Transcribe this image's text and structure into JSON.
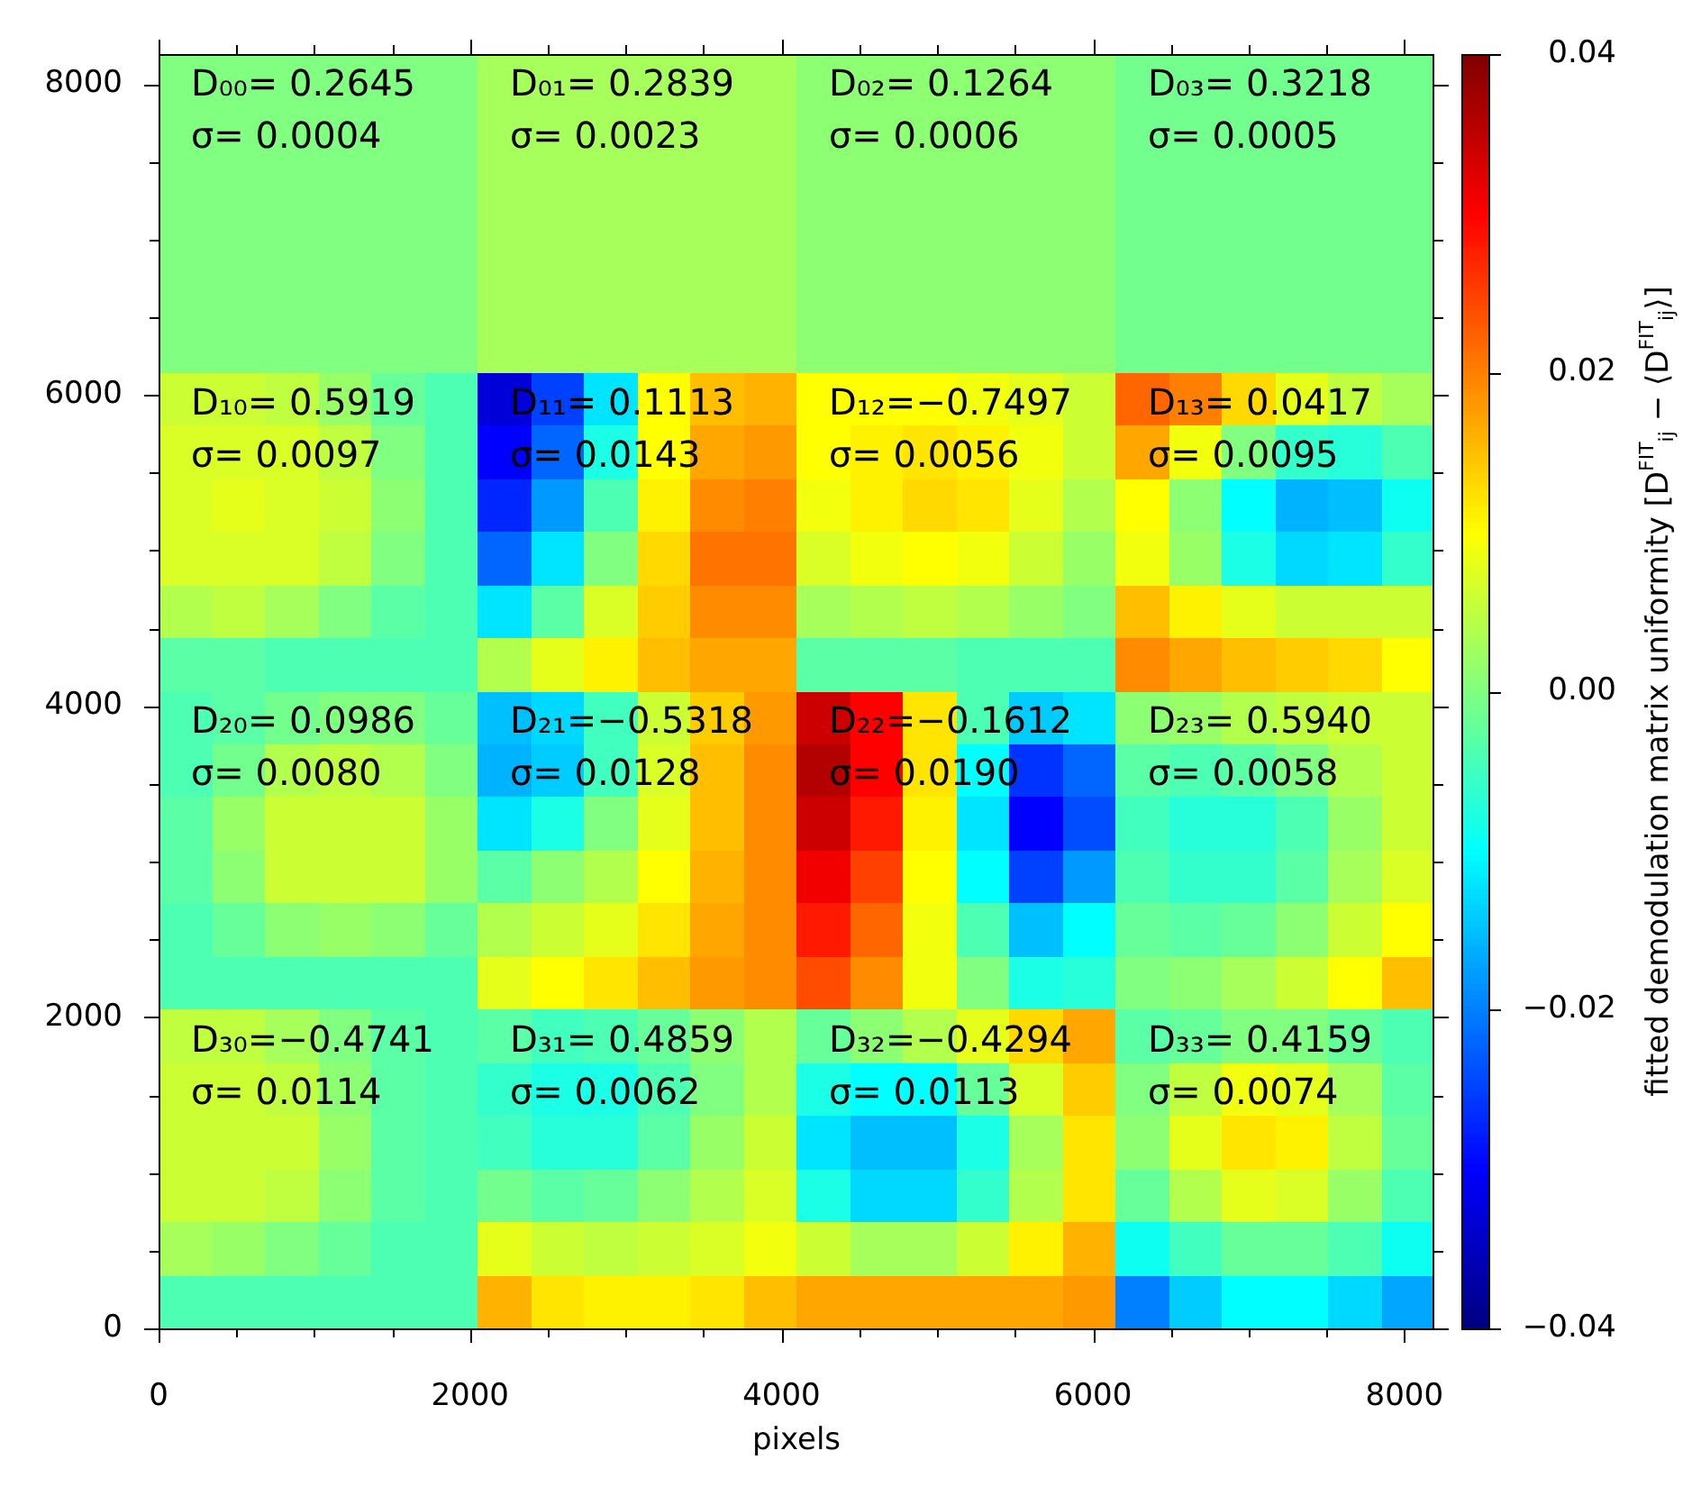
{
  "chart_data": {
    "type": "heatmap",
    "xlabel": "pixels",
    "clabel": "fitted demodulation matrix uniformity [D$^{FIT}$$_{ij}$ − ⟨D$^{FIT}$$_{ij}$⟩]",
    "xlim": [
      0,
      8192
    ],
    "ylim": [
      0,
      8192
    ],
    "xticks": [
      0,
      {
        "value": 500,
        "label": null
      },
      {
        "value": 1000,
        "label": null
      },
      {
        "value": 1500,
        "label": null
      },
      2000,
      {
        "value": 2500,
        "label": null
      },
      {
        "value": 3000,
        "label": null
      },
      {
        "value": 3500,
        "label": null
      },
      4000,
      {
        "value": 4500,
        "label": null
      },
      {
        "value": 5000,
        "label": null
      },
      {
        "value": 5500,
        "label": null
      },
      6000,
      {
        "value": 6500,
        "label": null
      },
      {
        "value": 7000,
        "label": null
      },
      {
        "value": 7500,
        "label": null
      },
      8000
    ],
    "yticks": [
      0,
      {
        "value": 500,
        "label": null
      },
      {
        "value": 1000,
        "label": null
      },
      {
        "value": 1500,
        "label": null
      },
      2000,
      {
        "value": 2500,
        "label": null
      },
      {
        "value": 3000,
        "label": null
      },
      {
        "value": 3500,
        "label": null
      },
      4000,
      {
        "value": 4500,
        "label": null
      },
      {
        "value": 5000,
        "label": null
      },
      {
        "value": 5500,
        "label": null
      },
      6000,
      {
        "value": 6500,
        "label": null
      },
      {
        "value": 7000,
        "label": null
      },
      {
        "value": 7500,
        "label": null
      },
      8000
    ],
    "clim": [
      -0.04,
      0.04
    ],
    "cticks": [
      {
        "value": -0.04,
        "label": "−0.04"
      },
      {
        "value": -0.02,
        "label": "−0.02"
      },
      {
        "value": 0,
        "label": "0.00"
      },
      0.02,
      0.04
    ],
    "cells": [
      [
        0,
        0,
        0,
        0,
        0,
        0,
        0.003,
        0.003,
        0.003,
        0.003,
        0.003,
        0.003,
        0.001,
        0.001,
        0.001,
        0.001,
        0.001,
        0.001,
        -0.001,
        -0.001,
        -0.001,
        -0.001,
        -0.001,
        -0.001
      ],
      [
        0,
        0,
        0,
        0,
        0,
        0,
        0.003,
        0.003,
        0.003,
        0.003,
        0.003,
        0.003,
        0.001,
        0.001,
        0.001,
        0.001,
        0.001,
        0.001,
        -0.001,
        -0.001,
        -0.001,
        -0.001,
        -0.001,
        -0.001
      ],
      [
        0,
        0,
        0,
        0,
        0,
        0,
        0.003,
        0.003,
        0.003,
        0.003,
        0.003,
        0.003,
        0.001,
        0.001,
        0.001,
        0.001,
        0.001,
        0.001,
        -0.001,
        -0.001,
        -0.001,
        -0.001,
        -0.001,
        -0.001
      ],
      [
        0,
        0,
        0,
        0,
        0,
        0,
        0.003,
        0.003,
        0.003,
        0.003,
        0.003,
        0.003,
        0.001,
        0.001,
        0.001,
        0.001,
        0.001,
        0.001,
        -0.001,
        -0.001,
        -0.001,
        -0.001,
        -0.001,
        -0.001
      ],
      [
        0,
        0,
        0,
        0,
        0,
        0,
        0.003,
        0.003,
        0.003,
        0.003,
        0.003,
        0.003,
        0.001,
        0.001,
        0.001,
        0.001,
        0.001,
        0.001,
        -0.001,
        -0.001,
        -0.001,
        -0.001,
        -0.001,
        -0.001
      ],
      [
        0,
        0,
        0,
        0,
        0,
        0,
        0.003,
        0.003,
        0.003,
        0.003,
        0.003,
        0.003,
        0.001,
        0.001,
        0.001,
        0.001,
        0.001,
        0.001,
        -0.001,
        -0.001,
        -0.001,
        -0.001,
        -0.001,
        -0.001
      ],
      [
        0.006,
        0.006,
        0.005,
        0.002,
        -0.002,
        -0.004,
        -0.033,
        -0.025,
        -0.012,
        0.01,
        0.015,
        0.016,
        0.01,
        0.01,
        0.01,
        0.009,
        0.008,
        0.006,
        0.022,
        0.02,
        0.013,
        0.008,
        0.005,
        0.003
      ],
      [
        0.007,
        0.007,
        0.007,
        0.005,
        0,
        -0.004,
        -0.03,
        -0.022,
        -0.008,
        0.01,
        0.017,
        0.018,
        0.01,
        0.011,
        0.012,
        0.011,
        0.009,
        0.006,
        0.017,
        0.009,
        0,
        -0.006,
        -0.007,
        -0.004
      ],
      [
        0.007,
        0.008,
        0.007,
        0.006,
        0.001,
        -0.004,
        -0.027,
        -0.018,
        -0.004,
        0.011,
        0.019,
        0.02,
        0.009,
        0.011,
        0.013,
        0.012,
        0.008,
        0.004,
        0.01,
        0.001,
        -0.01,
        -0.016,
        -0.015,
        -0.009
      ],
      [
        0.007,
        0.007,
        0.007,
        0.005,
        0,
        -0.004,
        -0.022,
        -0.012,
        0,
        0.013,
        0.021,
        0.021,
        0.007,
        0.009,
        0.01,
        0.009,
        0.006,
        0.002,
        0.009,
        0.002,
        -0.008,
        -0.013,
        -0.012,
        -0.006
      ],
      [
        0.004,
        0.005,
        0.003,
        0,
        -0.003,
        -0.004,
        -0.012,
        -0.003,
        0.007,
        0.014,
        0.019,
        0.019,
        0.003,
        0.004,
        0.005,
        0.004,
        0.002,
        0,
        0.015,
        0.011,
        0.008,
        0.006,
        0.006,
        0.006
      ],
      [
        -0.003,
        -0.003,
        -0.004,
        -0.004,
        -0.004,
        -0.004,
        0.004,
        0.008,
        0.011,
        0.015,
        0.017,
        0.017,
        -0.003,
        -0.003,
        -0.003,
        -0.004,
        -0.004,
        -0.004,
        0.019,
        0.017,
        0.015,
        0.014,
        0.013,
        0.01
      ],
      [
        -0.004,
        -0.003,
        -0.001,
        0,
        0,
        -0.002,
        -0.015,
        -0.013,
        -0.005,
        0.006,
        0.014,
        0.018,
        0.034,
        0.03,
        0.012,
        -0.004,
        -0.014,
        -0.012,
        0.001,
        0.002,
        0.004,
        0.005,
        0.006,
        0.006
      ],
      [
        -0.004,
        -0.001,
        0.004,
        0.005,
        0.004,
        0,
        -0.016,
        -0.014,
        -0.005,
        0.007,
        0.015,
        0.019,
        0.036,
        0.03,
        0.012,
        -0.01,
        -0.026,
        -0.022,
        -0.003,
        -0.004,
        -0.003,
        0,
        0.004,
        0.006
      ],
      [
        -0.003,
        0.002,
        0.006,
        0.006,
        0.006,
        0.002,
        -0.012,
        -0.008,
        0,
        0.008,
        0.015,
        0.019,
        0.034,
        0.028,
        0.011,
        -0.012,
        -0.03,
        -0.024,
        -0.005,
        -0.007,
        -0.007,
        -0.004,
        0.002,
        0.006
      ],
      [
        -0.003,
        0.001,
        0.006,
        0.006,
        0.006,
        0.002,
        -0.003,
        0.001,
        0.004,
        0.01,
        0.016,
        0.019,
        0.031,
        0.025,
        0.01,
        -0.01,
        -0.025,
        -0.018,
        -0.004,
        -0.006,
        -0.006,
        -0.003,
        0.003,
        0.007
      ],
      [
        -0.004,
        -0.002,
        0.001,
        0.002,
        0.001,
        -0.002,
        0.004,
        0.006,
        0.008,
        0.012,
        0.017,
        0.019,
        0.028,
        0.022,
        0.009,
        -0.004,
        -0.015,
        -0.01,
        -0.002,
        -0.003,
        -0.002,
        0.001,
        0.006,
        0.01
      ],
      [
        -0.004,
        -0.004,
        -0.004,
        -0.004,
        -0.004,
        -0.004,
        0.008,
        0.01,
        0.012,
        0.015,
        0.018,
        0.019,
        0.024,
        0.019,
        0.009,
        0,
        -0.008,
        -0.007,
        0,
        0.001,
        0.003,
        0.006,
        0.01,
        0.015
      ],
      [
        0.005,
        0.005,
        0.003,
        0,
        -0.003,
        -0.004,
        -0.003,
        -0.005,
        -0.004,
        -0.002,
        0.001,
        0.004,
        -0.002,
        0.001,
        0.004,
        0.008,
        0.013,
        0.017,
        -0.003,
        -0.002,
        0,
        0,
        -0.002,
        -0.004
      ],
      [
        0.006,
        0.006,
        0.005,
        0.001,
        -0.003,
        -0.004,
        -0.006,
        -0.008,
        -0.008,
        -0.004,
        0,
        0.004,
        -0.008,
        -0.01,
        -0.01,
        -0.002,
        0.007,
        0.014,
        0,
        0.005,
        0.009,
        0.008,
        0.003,
        -0.003
      ],
      [
        0.006,
        0.006,
        0.006,
        0.002,
        -0.003,
        -0.004,
        -0.005,
        -0.007,
        -0.007,
        -0.003,
        0.002,
        0.006,
        -0.012,
        -0.015,
        -0.015,
        -0.008,
        0.003,
        0.012,
        0.001,
        0.008,
        0.012,
        0.011,
        0.005,
        -0.002
      ],
      [
        0.006,
        0.006,
        0.005,
        0.001,
        -0.003,
        -0.004,
        -0.001,
        -0.003,
        -0.002,
        0.001,
        0.004,
        0.007,
        -0.008,
        -0.013,
        -0.013,
        -0.006,
        0.004,
        0.012,
        -0.002,
        0.004,
        0.008,
        0.007,
        0.002,
        -0.004
      ],
      [
        0.003,
        0.002,
        0,
        -0.002,
        -0.004,
        -0.004,
        0.008,
        0.006,
        0.005,
        0.006,
        0.007,
        0.009,
        0.006,
        0.003,
        0.003,
        0.006,
        0.011,
        0.016,
        -0.009,
        -0.005,
        -0.002,
        -0.002,
        -0.004,
        -0.009
      ],
      [
        -0.004,
        -0.004,
        -0.004,
        -0.004,
        -0.004,
        -0.004,
        0.016,
        0.012,
        0.011,
        0.011,
        0.012,
        0.015,
        0.017,
        0.017,
        0.017,
        0.017,
        0.017,
        0.018,
        -0.02,
        -0.014,
        -0.01,
        -0.01,
        -0.013,
        -0.017
      ]
    ],
    "annotations": [
      "D₀₀= 0.2645",
      "σ= 0.0004",
      "D₀₁= 0.2839",
      "σ= 0.0023",
      "D₀₂= 0.1264",
      "σ= 0.0006",
      "D₀₃= 0.3218",
      "σ= 0.0005",
      "D₁₀= 0.5919",
      "σ= 0.0097",
      "D₁₁= 0.1113",
      "σ= 0.0143",
      "D₁₂=−0.7497",
      "σ= 0.0056",
      "D₁₃= 0.0417",
      "σ= 0.0095",
      "D₂₀= 0.0986",
      "σ= 0.0080",
      "D₂₁=−0.5318",
      "σ= 0.0128",
      "D₂₂=−0.1612",
      "σ= 0.0190",
      "D₂₃= 0.5940",
      "σ= 0.0058",
      "D₃₀=−0.4741",
      "σ= 0.0114",
      "D₃₁= 0.4859",
      "σ= 0.0062",
      "D₃₂=−0.4294",
      "σ= 0.0113",
      "D₃₃= 0.4159",
      "σ= 0.0074"
    ]
  }
}
